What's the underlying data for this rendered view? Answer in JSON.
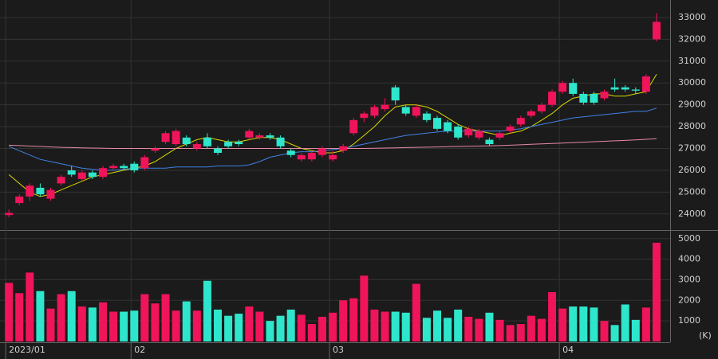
{
  "chart_data": {
    "type": "candlestick",
    "up_color": "#f0145a",
    "down_color": "#2ee6cc",
    "grid": true,
    "xticks": [
      {
        "value": 0,
        "label": "2023/01"
      },
      {
        "value": 12,
        "label": "02"
      },
      {
        "value": 31,
        "label": "03"
      },
      {
        "value": 53,
        "label": "04"
      }
    ],
    "xlim": [
      -0.85,
      63.3
    ],
    "ylim": [
      23300,
      33800
    ],
    "yticks": [
      24000,
      25000,
      26000,
      27000,
      28000,
      29000,
      30000,
      31000,
      32000,
      33000
    ],
    "y2lim": [
      0,
      5300
    ],
    "y2ticks": [
      1000,
      2000,
      3000,
      4000,
      5000
    ],
    "volume_unit": "(K)",
    "open": [
      23950,
      24500,
      24800,
      25200,
      24700,
      25400,
      26000,
      25600,
      25900,
      25700,
      26100,
      26200,
      26300,
      26100,
      26900,
      27300,
      27200,
      27500,
      27000,
      27500,
      27000,
      27300,
      27300,
      27500,
      27500,
      27600,
      27500,
      26900,
      26500,
      26500,
      26700,
      26500,
      26900,
      27700,
      28400,
      28500,
      28800,
      29800,
      28900,
      28500,
      28600,
      28400,
      28200,
      28000,
      27600,
      27500,
      27400,
      27500,
      27800,
      28100,
      28500,
      28700,
      29000,
      29600,
      30000,
      29500,
      29500,
      29300,
      29800,
      29800,
      29700,
      29600,
      32000
    ],
    "close": [
      24050,
      24800,
      25300,
      24900,
      25100,
      25700,
      25800,
      25900,
      25700,
      26100,
      26200,
      26100,
      26000,
      26600,
      27000,
      27700,
      27800,
      27200,
      27200,
      27100,
      26800,
      27100,
      27200,
      27800,
      27600,
      27500,
      27100,
      26700,
      26700,
      26800,
      27000,
      26700,
      27100,
      28300,
      28600,
      28900,
      29000,
      29200,
      28600,
      28900,
      28300,
      27900,
      27800,
      27500,
      27900,
      27800,
      27200,
      27700,
      28000,
      28400,
      28700,
      29000,
      29600,
      30000,
      29500,
      29100,
      29100,
      29600,
      29700,
      29700,
      29650,
      30300,
      32800
    ],
    "high": [
      24200,
      24900,
      25400,
      25400,
      25200,
      25800,
      26200,
      26000,
      26000,
      26200,
      26300,
      26300,
      26400,
      26700,
      27100,
      27800,
      27900,
      27600,
      27300,
      27700,
      27100,
      27400,
      27400,
      27900,
      27700,
      27700,
      27600,
      27000,
      26800,
      26900,
      27100,
      26900,
      27200,
      28400,
      28700,
      29000,
      29300,
      29900,
      29000,
      29000,
      28700,
      28500,
      28300,
      28100,
      28000,
      27900,
      27500,
      27800,
      28100,
      28500,
      28800,
      29100,
      29700,
      30100,
      30200,
      29600,
      29600,
      29700,
      30200,
      29900,
      29800,
      30400,
      33200
    ],
    "low": [
      23850,
      24400,
      24600,
      24800,
      24600,
      25300,
      25700,
      25500,
      25600,
      25600,
      26000,
      26000,
      25900,
      26000,
      26800,
      27200,
      27100,
      27100,
      26900,
      27000,
      26700,
      27000,
      27100,
      27400,
      27400,
      27400,
      27000,
      26600,
      26400,
      26400,
      26600,
      26400,
      26800,
      27600,
      28200,
      28400,
      28700,
      29000,
      28500,
      28400,
      28200,
      27800,
      27700,
      27400,
      27500,
      27400,
      27100,
      27400,
      27700,
      28000,
      28400,
      28600,
      28900,
      29500,
      29400,
      29000,
      29000,
      29200,
      29600,
      29600,
      29500,
      29500,
      31900
    ],
    "volume": [
      2850,
      2350,
      3350,
      2450,
      1600,
      2300,
      2450,
      1700,
      1650,
      1900,
      1450,
      1450,
      1500,
      2300,
      1850,
      2300,
      1500,
      1950,
      1500,
      2950,
      1550,
      1250,
      1350,
      1700,
      1450,
      1000,
      1250,
      1550,
      1300,
      850,
      1200,
      1400,
      2000,
      2100,
      3200,
      1550,
      1450,
      1450,
      1400,
      2800,
      1150,
      1500,
      1150,
      1550,
      1200,
      1100,
      1400,
      1050,
      800,
      850,
      1250,
      1100,
      2400,
      1600,
      1700,
      1700,
      1650,
      1000,
      800,
      1800,
      1050,
      1650,
      4800
    ],
    "series": [
      {
        "color": "#d8d800",
        "values": [
          25800,
          25400,
          25000,
          24800,
          24900,
          25100,
          25300,
          25500,
          25700,
          25800,
          25900,
          26000,
          26100,
          26200,
          26400,
          26700,
          27000,
          27200,
          27400,
          27500,
          27400,
          27300,
          27300,
          27400,
          27500,
          27500,
          27400,
          27200,
          27000,
          26900,
          26800,
          26800,
          26900,
          27200,
          27600,
          28000,
          28500,
          28900,
          29000,
          29000,
          28900,
          28700,
          28400,
          28100,
          27900,
          27800,
          27700,
          27600,
          27700,
          27800,
          28000,
          28300,
          28600,
          29000,
          29300,
          29400,
          29500,
          29500,
          29400,
          29400,
          29500,
          29600,
          30400
        ]
      },
      {
        "color": "#3f82e6",
        "values": [
          27100,
          26900,
          26700,
          26500,
          26400,
          26300,
          26200,
          26100,
          26050,
          26000,
          26000,
          26050,
          26100,
          26100,
          26100,
          26100,
          26150,
          26150,
          26150,
          26150,
          26200,
          26200,
          26200,
          26250,
          26400,
          26600,
          26700,
          26800,
          26850,
          26850,
          26900,
          26950,
          27000,
          27100,
          27200,
          27300,
          27400,
          27500,
          27600,
          27650,
          27700,
          27750,
          27800,
          27800,
          27800,
          27800,
          27800,
          27800,
          27850,
          27900,
          28000,
          28100,
          28200,
          28300,
          28400,
          28450,
          28500,
          28550,
          28600,
          28650,
          28700,
          28700,
          28850
        ]
      },
      {
        "color": "#e58aa2",
        "values": [
          27150,
          27130,
          27110,
          27090,
          27070,
          27050,
          27040,
          27030,
          27020,
          27010,
          27000,
          27000,
          27000,
          27000,
          27000,
          27000,
          27000,
          27000,
          27000,
          27000,
          27000,
          27000,
          27000,
          27000,
          27000,
          27000,
          27000,
          27000,
          27000,
          27000,
          27000,
          27000,
          27000,
          27000,
          27000,
          27010,
          27020,
          27030,
          27040,
          27050,
          27060,
          27070,
          27080,
          27090,
          27100,
          27110,
          27120,
          27130,
          27150,
          27170,
          27190,
          27210,
          27230,
          27250,
          27270,
          27290,
          27310,
          27330,
          27350,
          27370,
          27390,
          27420,
          27450
        ]
      }
    ]
  }
}
